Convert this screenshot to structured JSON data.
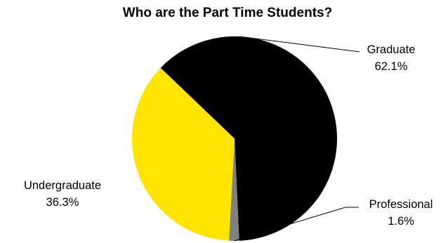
{
  "chart_data": {
    "type": "pie",
    "title": "Who are the Part Time Students?",
    "slices": [
      {
        "label": "Graduate",
        "value": 62.1,
        "value_label": "62.1%",
        "color": "#000000"
      },
      {
        "label": "Professional",
        "value": 1.6,
        "value_label": "1.6%",
        "color": "#808080"
      },
      {
        "label": "Undergraduate",
        "value": 36.3,
        "value_label": "36.3%",
        "color": "#FFE500"
      }
    ],
    "legend": "none",
    "labels": "outside with leader lines"
  }
}
